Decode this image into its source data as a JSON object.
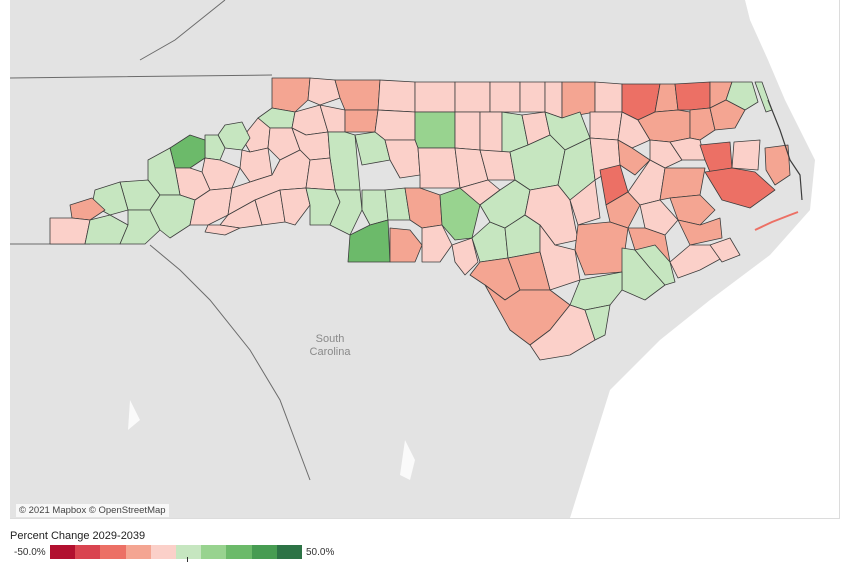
{
  "attribution": "© 2021 Mapbox © OpenStreetMap",
  "labels": {
    "south_carolina": [
      "South",
      "Carolina"
    ]
  },
  "legend": {
    "title": "Percent Change 2029-2039",
    "min_label": "-50.0%",
    "max_label": "50.0%",
    "ramp": [
      "#b2102f",
      "#d94450",
      "#ec7065",
      "#f4a592",
      "#fbd0c9",
      "#c6e6c0",
      "#98d38f",
      "#6cba6a",
      "#479c52",
      "#2d7346"
    ]
  },
  "colors": {
    "land": "#e3e3e3",
    "water": "#ffffff",
    "state_border": "#6b6b6b",
    "county_border": "#3d3d3d"
  }
}
